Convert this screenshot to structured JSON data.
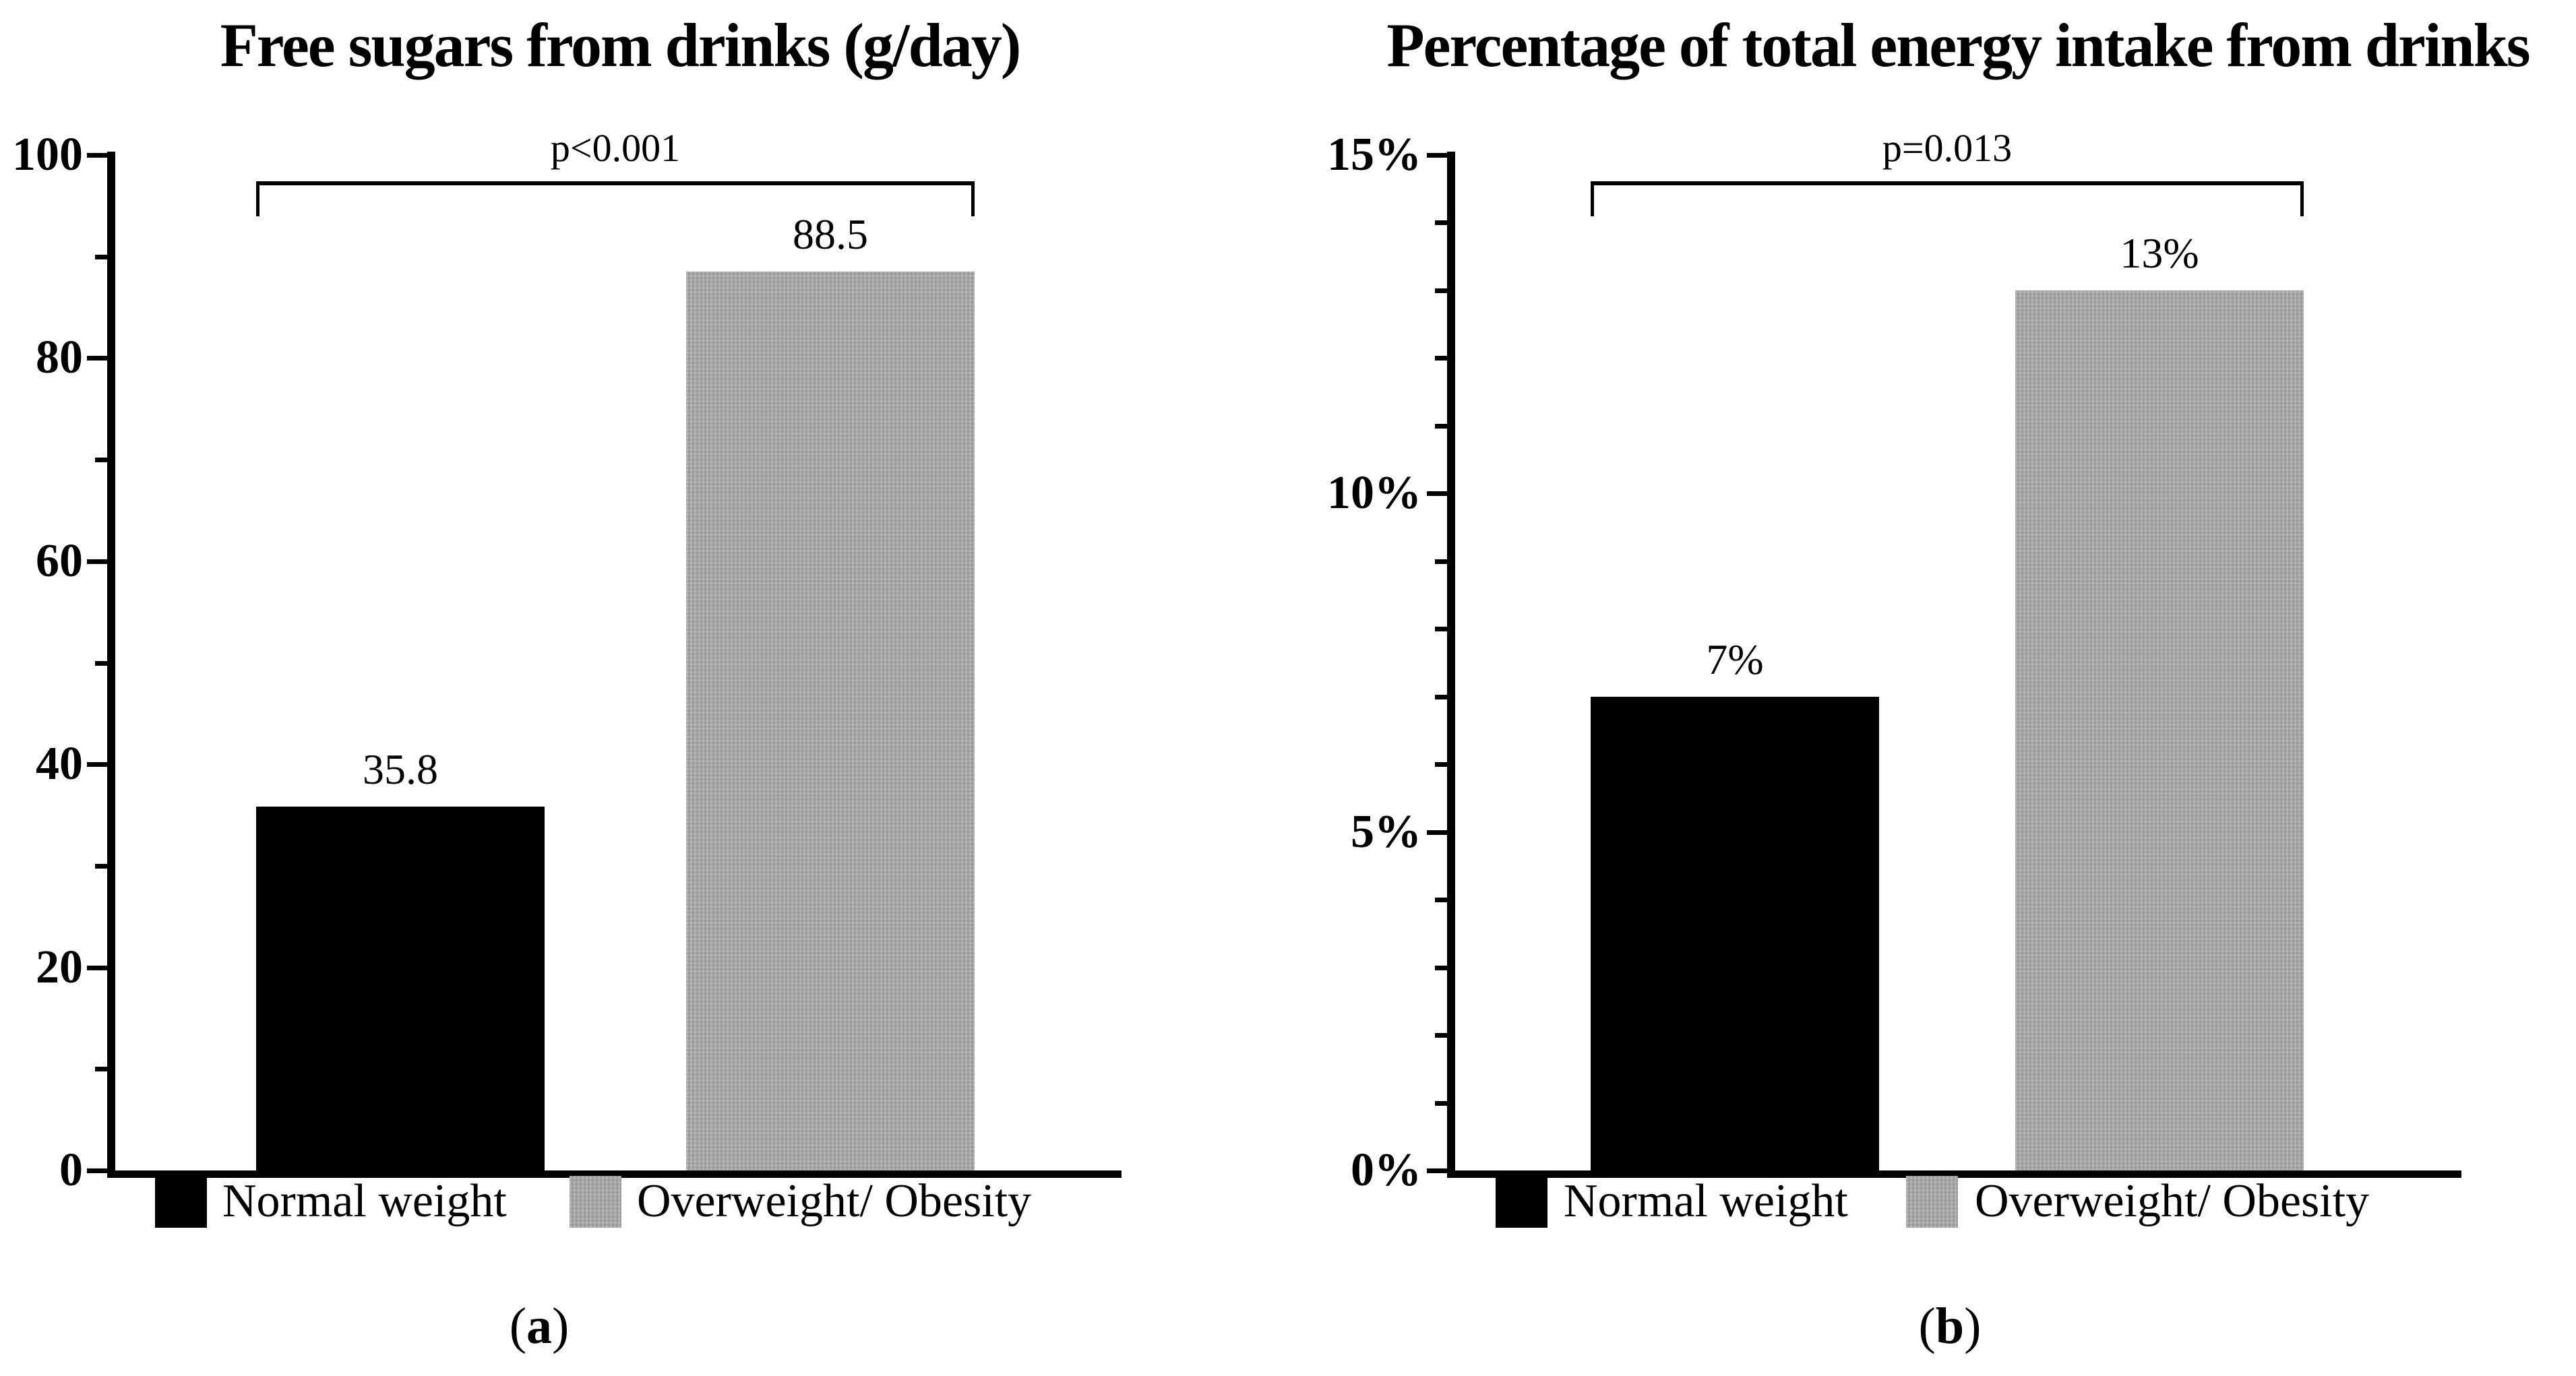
{
  "chart_data": [
    {
      "type": "bar",
      "title": "Free sugars from drinks (g/day)",
      "categories": [
        "Normal weight",
        "Overweight/ Obesity"
      ],
      "values": [
        35.8,
        88.5
      ],
      "value_labels": [
        "35.8",
        "88.5"
      ],
      "xlabel": "",
      "ylabel": "",
      "ylim": [
        0,
        100
      ],
      "yticks": [
        0,
        20,
        40,
        60,
        80,
        100
      ],
      "ytick_labels": [
        "0",
        "20",
        "40",
        "60",
        "80",
        "100"
      ],
      "minor_yticks": [
        10,
        30,
        50,
        70,
        90
      ],
      "grid": false,
      "bar_colors": [
        "#000000",
        "#a6a6a6"
      ],
      "significance": {
        "p_label": "p<0.001",
        "compares": [
          "Normal weight",
          "Overweight/ Obesity"
        ]
      },
      "legend_position": "bottom",
      "legend": [
        {
          "label": "Normal weight",
          "color": "#000000"
        },
        {
          "label": "Overweight/ Obesity",
          "color": "#a6a6a6"
        }
      ],
      "panel": {
        "open": "(",
        "letter": "a",
        "close": ")"
      }
    },
    {
      "type": "bar",
      "title": "Percentage of total energy intake from drinks",
      "categories": [
        "Normal weight",
        "Overweight/ Obesity"
      ],
      "values": [
        7,
        13
      ],
      "value_labels": [
        "7%",
        "13%"
      ],
      "xlabel": "",
      "ylabel": "",
      "ylim": [
        0,
        15
      ],
      "yticks": [
        0,
        5,
        10,
        15
      ],
      "ytick_labels": [
        "0%",
        "5%",
        "10%",
        "15%"
      ],
      "minor_yticks": [
        1,
        2,
        3,
        4,
        6,
        7,
        8,
        9,
        11,
        12,
        13,
        14
      ],
      "grid": false,
      "bar_colors": [
        "#000000",
        "#a6a6a6"
      ],
      "significance": {
        "p_label": "p=0.013",
        "compares": [
          "Normal weight",
          "Overweight/ Obesity"
        ]
      },
      "legend_position": "bottom",
      "legend": [
        {
          "label": "Normal weight",
          "color": "#000000"
        },
        {
          "label": "Overweight/ Obesity",
          "color": "#a6a6a6"
        }
      ],
      "panel": {
        "open": "(",
        "letter": "b",
        "close": ")"
      }
    }
  ],
  "colors": {
    "background": "#ffffff",
    "axis": "#000000",
    "bar_black": "#000000",
    "bar_gray": "#a6a6a6"
  }
}
